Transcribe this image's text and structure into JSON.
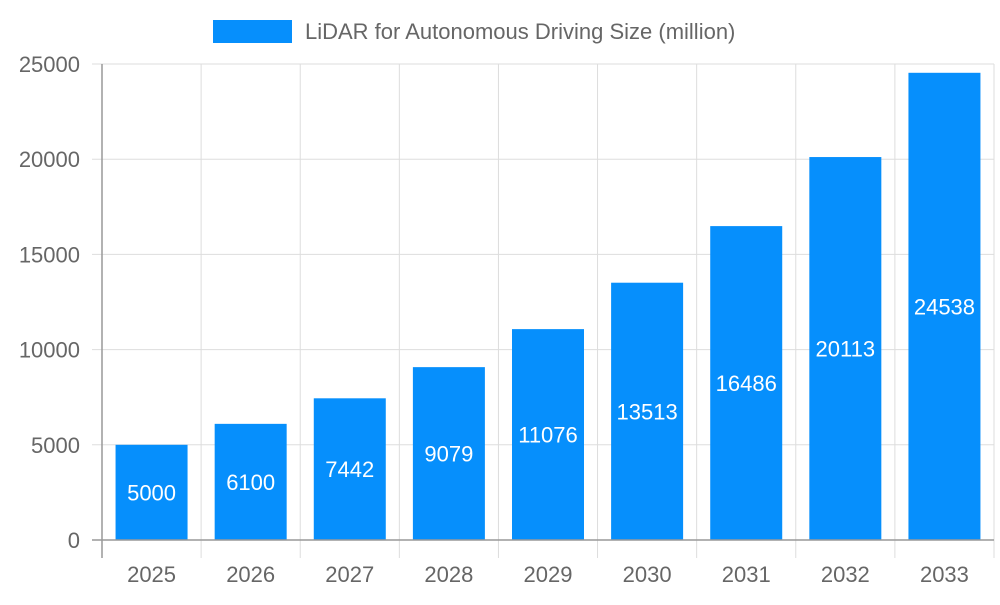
{
  "chart_data": {
    "type": "bar",
    "title": "",
    "xlabel": "",
    "ylabel": "",
    "categories": [
      "2025",
      "2026",
      "2027",
      "2028",
      "2029",
      "2030",
      "2031",
      "2032",
      "2033"
    ],
    "series": [
      {
        "name": "LiDAR for Autonomous Driving Size (million)",
        "values": [
          5000,
          6100,
          7442,
          9079,
          11076,
          13513,
          16486,
          20113,
          24538
        ]
      }
    ],
    "ylim": [
      0,
      25000
    ],
    "yticks": [
      0,
      5000,
      10000,
      15000,
      20000,
      25000
    ],
    "grid": true,
    "legend": "top-center",
    "data_labels": "inside-center",
    "colors": {
      "bar": "#068ffc",
      "label": "#ffffff",
      "text": "#666666",
      "grid": "#dddddd",
      "axis": "#999999"
    }
  }
}
